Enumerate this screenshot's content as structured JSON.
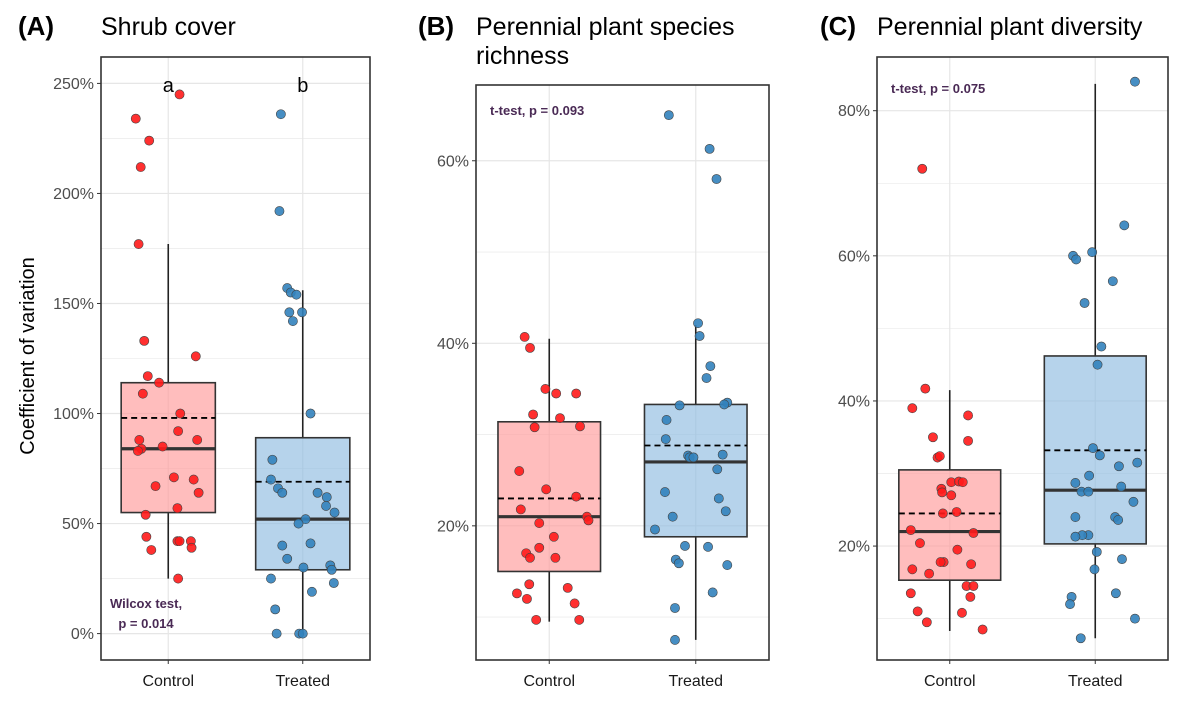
{
  "figure": {
    "ylabel": "Coefficient of variation",
    "colors": {
      "control_fill": "#ff9999",
      "control_point": "#ff1a1a",
      "treated_fill": "#8fbce0",
      "treated_point": "#3282bd",
      "grid": "#e6e6e6"
    }
  },
  "chart_data": [
    {
      "type": "boxplot",
      "panel_label": "(A)",
      "title_lines": [
        "Shrub cover"
      ],
      "categories": [
        "Control",
        "Treated"
      ],
      "ylim": [
        -12,
        262
      ],
      "yticks": [
        0,
        50,
        100,
        150,
        200,
        250
      ],
      "ytick_labels": [
        "0%",
        "50%",
        "100%",
        "150%",
        "200%",
        "250%"
      ],
      "stat_lines": [
        "Wilcox test,",
        "p = 0.014"
      ],
      "stat_placement": "bottom-left",
      "letters": [
        "a",
        "b"
      ],
      "boxes": [
        {
          "group": "Control",
          "whisker_low": 25,
          "q1": 55,
          "median": 84,
          "q3": 114,
          "whisker_high": 177,
          "mean": 98
        },
        {
          "group": "Treated",
          "whisker_low": 0,
          "q1": 29,
          "median": 52,
          "q3": 89,
          "whisker_high": 156,
          "mean": 69
        }
      ],
      "points": [
        [
          {
            "dx": -0.46,
            "y": 234
          },
          {
            "dx": -0.27,
            "y": 224
          },
          {
            "dx": -0.39,
            "y": 212
          },
          {
            "dx": 0.16,
            "y": 245
          },
          {
            "dx": -0.42,
            "y": 177
          },
          {
            "dx": -0.34,
            "y": 133
          },
          {
            "dx": -0.29,
            "y": 117
          },
          {
            "dx": 0.39,
            "y": 126
          },
          {
            "dx": -0.13,
            "y": 114
          },
          {
            "dx": -0.36,
            "y": 109
          },
          {
            "dx": -0.41,
            "y": 88
          },
          {
            "dx": -0.38,
            "y": 84
          },
          {
            "dx": -0.43,
            "y": 83
          },
          {
            "dx": -0.08,
            "y": 85
          },
          {
            "dx": 0.17,
            "y": 100
          },
          {
            "dx": 0.14,
            "y": 92
          },
          {
            "dx": 0.41,
            "y": 88
          },
          {
            "dx": 0.36,
            "y": 70
          },
          {
            "dx": -0.18,
            "y": 67
          },
          {
            "dx": 0.08,
            "y": 71
          },
          {
            "dx": 0.43,
            "y": 64
          },
          {
            "dx": 0.13,
            "y": 57
          },
          {
            "dx": -0.32,
            "y": 54
          },
          {
            "dx": -0.31,
            "y": 44
          },
          {
            "dx": -0.24,
            "y": 38
          },
          {
            "dx": 0.13,
            "y": 42
          },
          {
            "dx": 0.16,
            "y": 42
          },
          {
            "dx": 0.32,
            "y": 42
          },
          {
            "dx": 0.33,
            "y": 39
          },
          {
            "dx": 0.14,
            "y": 25
          }
        ],
        [
          {
            "dx": -0.31,
            "y": 236
          },
          {
            "dx": -0.33,
            "y": 192
          },
          {
            "dx": -0.22,
            "y": 157
          },
          {
            "dx": -0.17,
            "y": 155
          },
          {
            "dx": -0.09,
            "y": 154
          },
          {
            "dx": -0.19,
            "y": 146
          },
          {
            "dx": -0.14,
            "y": 142
          },
          {
            "dx": -0.01,
            "y": 146
          },
          {
            "dx": 0.11,
            "y": 100
          },
          {
            "dx": -0.43,
            "y": 79
          },
          {
            "dx": -0.45,
            "y": 70
          },
          {
            "dx": -0.35,
            "y": 66
          },
          {
            "dx": -0.29,
            "y": 64
          },
          {
            "dx": 0.21,
            "y": 64
          },
          {
            "dx": 0.34,
            "y": 62
          },
          {
            "dx": 0.33,
            "y": 58
          },
          {
            "dx": 0.45,
            "y": 55
          },
          {
            "dx": 0.04,
            "y": 52
          },
          {
            "dx": -0.06,
            "y": 50
          },
          {
            "dx": -0.29,
            "y": 40
          },
          {
            "dx": 0.11,
            "y": 41
          },
          {
            "dx": -0.22,
            "y": 34
          },
          {
            "dx": 0.01,
            "y": 30
          },
          {
            "dx": 0.39,
            "y": 31
          },
          {
            "dx": 0.41,
            "y": 29
          },
          {
            "dx": -0.45,
            "y": 25
          },
          {
            "dx": 0.44,
            "y": 23
          },
          {
            "dx": -0.39,
            "y": 11
          },
          {
            "dx": 0.13,
            "y": 19
          },
          {
            "dx": -0.37,
            "y": 0
          },
          {
            "dx": -0.05,
            "y": 0
          },
          {
            "dx": 0.0,
            "y": 0
          }
        ]
      ]
    },
    {
      "type": "boxplot",
      "panel_label": "(B)",
      "title_lines": [
        "Perennial plant species",
        "richness"
      ],
      "categories": [
        "Control",
        "Treated"
      ],
      "ylim": [
        5.3,
        68.3
      ],
      "yticks": [
        20,
        40,
        60
      ],
      "ytick_labels": [
        "20%",
        "40%",
        "60%"
      ],
      "stat_lines": [
        "t-test, p = 0.093"
      ],
      "stat_placement": "top-left",
      "letters": [],
      "boxes": [
        {
          "group": "Control",
          "whisker_low": 9.5,
          "q1": 15,
          "median": 21,
          "q3": 31.4,
          "whisker_high": 40.5,
          "mean": 23
        },
        {
          "group": "Treated",
          "whisker_low": 7.5,
          "q1": 18.8,
          "median": 27,
          "q3": 33.3,
          "whisker_high": 42,
          "mean": 28.8
        }
      ],
      "points": [
        [
          {
            "dx": -0.32,
            "y": 40.7
          },
          {
            "dx": -0.25,
            "y": 39.5
          },
          {
            "dx": -0.05,
            "y": 35
          },
          {
            "dx": 0.09,
            "y": 34.5
          },
          {
            "dx": 0.35,
            "y": 34.5
          },
          {
            "dx": -0.21,
            "y": 32.2
          },
          {
            "dx": 0.14,
            "y": 31.8
          },
          {
            "dx": -0.19,
            "y": 30.8
          },
          {
            "dx": 0.4,
            "y": 30.9
          },
          {
            "dx": -0.39,
            "y": 26
          },
          {
            "dx": -0.04,
            "y": 24
          },
          {
            "dx": 0.35,
            "y": 23.2
          },
          {
            "dx": -0.37,
            "y": 21.8
          },
          {
            "dx": 0.49,
            "y": 21
          },
          {
            "dx": 0.51,
            "y": 20.6
          },
          {
            "dx": -0.13,
            "y": 20.3
          },
          {
            "dx": 0.06,
            "y": 18.8
          },
          {
            "dx": -0.13,
            "y": 17.6
          },
          {
            "dx": -0.3,
            "y": 17
          },
          {
            "dx": -0.25,
            "y": 16.5
          },
          {
            "dx": 0.08,
            "y": 16.5
          },
          {
            "dx": -0.26,
            "y": 13.6
          },
          {
            "dx": 0.24,
            "y": 13.2
          },
          {
            "dx": -0.42,
            "y": 12.6
          },
          {
            "dx": -0.29,
            "y": 12
          },
          {
            "dx": 0.33,
            "y": 11.5
          },
          {
            "dx": -0.17,
            "y": 9.7
          },
          {
            "dx": 0.39,
            "y": 9.7
          }
        ],
        [
          {
            "dx": -0.35,
            "y": 65
          },
          {
            "dx": 0.18,
            "y": 61.3
          },
          {
            "dx": 0.27,
            "y": 58
          },
          {
            "dx": 0.03,
            "y": 42.2
          },
          {
            "dx": 0.05,
            "y": 40.8
          },
          {
            "dx": 0.19,
            "y": 37.5
          },
          {
            "dx": 0.14,
            "y": 36.2
          },
          {
            "dx": 0.41,
            "y": 33.5
          },
          {
            "dx": 0.37,
            "y": 33.3
          },
          {
            "dx": -0.21,
            "y": 33.2
          },
          {
            "dx": -0.38,
            "y": 31.6
          },
          {
            "dx": -0.39,
            "y": 29.5
          },
          {
            "dx": 0.35,
            "y": 27.8
          },
          {
            "dx": -0.1,
            "y": 27.7
          },
          {
            "dx": -0.08,
            "y": 27.5
          },
          {
            "dx": -0.03,
            "y": 27.5
          },
          {
            "dx": 0.28,
            "y": 26.2
          },
          {
            "dx": -0.4,
            "y": 23.7
          },
          {
            "dx": 0.3,
            "y": 23
          },
          {
            "dx": 0.39,
            "y": 21.6
          },
          {
            "dx": -0.3,
            "y": 21
          },
          {
            "dx": -0.53,
            "y": 19.6
          },
          {
            "dx": -0.14,
            "y": 17.8
          },
          {
            "dx": 0.16,
            "y": 17.7
          },
          {
            "dx": -0.26,
            "y": 16.3
          },
          {
            "dx": -0.22,
            "y": 15.9
          },
          {
            "dx": 0.41,
            "y": 15.7
          },
          {
            "dx": 0.22,
            "y": 12.7
          },
          {
            "dx": -0.27,
            "y": 11
          },
          {
            "dx": -0.27,
            "y": 7.5
          }
        ]
      ]
    },
    {
      "type": "boxplot",
      "panel_label": "(C)",
      "title_lines": [
        "Perennial plant diversity"
      ],
      "categories": [
        "Control",
        "Treated"
      ],
      "ylim": [
        4.3,
        87.4
      ],
      "yticks": [
        20,
        40,
        60,
        80
      ],
      "ytick_labels": [
        "20%",
        "40%",
        "60%",
        "80%"
      ],
      "stat_lines": [
        "t-test, p = 0.075"
      ],
      "stat_placement": "top-left",
      "letters": [],
      "boxes": [
        {
          "group": "Control",
          "whisker_low": 8.3,
          "q1": 15.3,
          "median": 22,
          "q3": 30.5,
          "whisker_high": 41.5,
          "mean": 24.5
        },
        {
          "group": "Treated",
          "whisker_low": 7.3,
          "q1": 20.3,
          "median": 27.7,
          "q3": 46.2,
          "whisker_high": 83.7,
          "mean": 33.2
        }
      ],
      "points": [
        [
          {
            "dx": -0.36,
            "y": 72
          },
          {
            "dx": -0.32,
            "y": 41.7
          },
          {
            "dx": -0.49,
            "y": 39
          },
          {
            "dx": 0.24,
            "y": 38
          },
          {
            "dx": -0.22,
            "y": 35
          },
          {
            "dx": 0.24,
            "y": 34.5
          },
          {
            "dx": -0.16,
            "y": 32.2
          },
          {
            "dx": -0.13,
            "y": 32.4
          },
          {
            "dx": 0.02,
            "y": 28.8
          },
          {
            "dx": 0.12,
            "y": 28.9
          },
          {
            "dx": 0.17,
            "y": 28.8
          },
          {
            "dx": -0.11,
            "y": 27.9
          },
          {
            "dx": -0.1,
            "y": 27.4
          },
          {
            "dx": 0.02,
            "y": 27
          },
          {
            "dx": 0.09,
            "y": 24.7
          },
          {
            "dx": -0.09,
            "y": 24.5
          },
          {
            "dx": -0.51,
            "y": 22.2
          },
          {
            "dx": 0.31,
            "y": 21.8
          },
          {
            "dx": -0.39,
            "y": 20.4
          },
          {
            "dx": 0.1,
            "y": 19.5
          },
          {
            "dx": -0.08,
            "y": 17.8
          },
          {
            "dx": -0.12,
            "y": 17.8
          },
          {
            "dx": 0.28,
            "y": 17.5
          },
          {
            "dx": -0.49,
            "y": 16.8
          },
          {
            "dx": -0.27,
            "y": 16.2
          },
          {
            "dx": 0.22,
            "y": 14.5
          },
          {
            "dx": 0.31,
            "y": 14.5
          },
          {
            "dx": -0.51,
            "y": 13.5
          },
          {
            "dx": 0.27,
            "y": 13
          },
          {
            "dx": -0.42,
            "y": 11
          },
          {
            "dx": 0.16,
            "y": 10.8
          },
          {
            "dx": -0.3,
            "y": 9.5
          },
          {
            "dx": 0.43,
            "y": 8.5
          }
        ],
        [
          {
            "dx": 0.52,
            "y": 84
          },
          {
            "dx": 0.38,
            "y": 64.2
          },
          {
            "dx": -0.29,
            "y": 60
          },
          {
            "dx": -0.25,
            "y": 59.5
          },
          {
            "dx": -0.04,
            "y": 60.5
          },
          {
            "dx": 0.23,
            "y": 56.5
          },
          {
            "dx": -0.14,
            "y": 53.5
          },
          {
            "dx": 0.08,
            "y": 47.5
          },
          {
            "dx": 0.03,
            "y": 45
          },
          {
            "dx": -0.03,
            "y": 33.5
          },
          {
            "dx": 0.06,
            "y": 32.5
          },
          {
            "dx": 0.55,
            "y": 31.5
          },
          {
            "dx": 0.31,
            "y": 31
          },
          {
            "dx": -0.26,
            "y": 28.7
          },
          {
            "dx": 0.34,
            "y": 28.2
          },
          {
            "dx": -0.18,
            "y": 27.5
          },
          {
            "dx": -0.09,
            "y": 27.5
          },
          {
            "dx": -0.08,
            "y": 29.7
          },
          {
            "dx": 0.5,
            "y": 26.1
          },
          {
            "dx": -0.26,
            "y": 24
          },
          {
            "dx": 0.26,
            "y": 24
          },
          {
            "dx": 0.3,
            "y": 23.6
          },
          {
            "dx": -0.09,
            "y": 21.5
          },
          {
            "dx": -0.17,
            "y": 21.5
          },
          {
            "dx": -0.26,
            "y": 21.3
          },
          {
            "dx": 0.02,
            "y": 19.2
          },
          {
            "dx": 0.35,
            "y": 18.2
          },
          {
            "dx": -0.01,
            "y": 16.8
          },
          {
            "dx": 0.27,
            "y": 13.5
          },
          {
            "dx": -0.31,
            "y": 13
          },
          {
            "dx": -0.33,
            "y": 12
          },
          {
            "dx": -0.19,
            "y": 7.3
          },
          {
            "dx": 0.52,
            "y": 10
          }
        ]
      ]
    }
  ]
}
